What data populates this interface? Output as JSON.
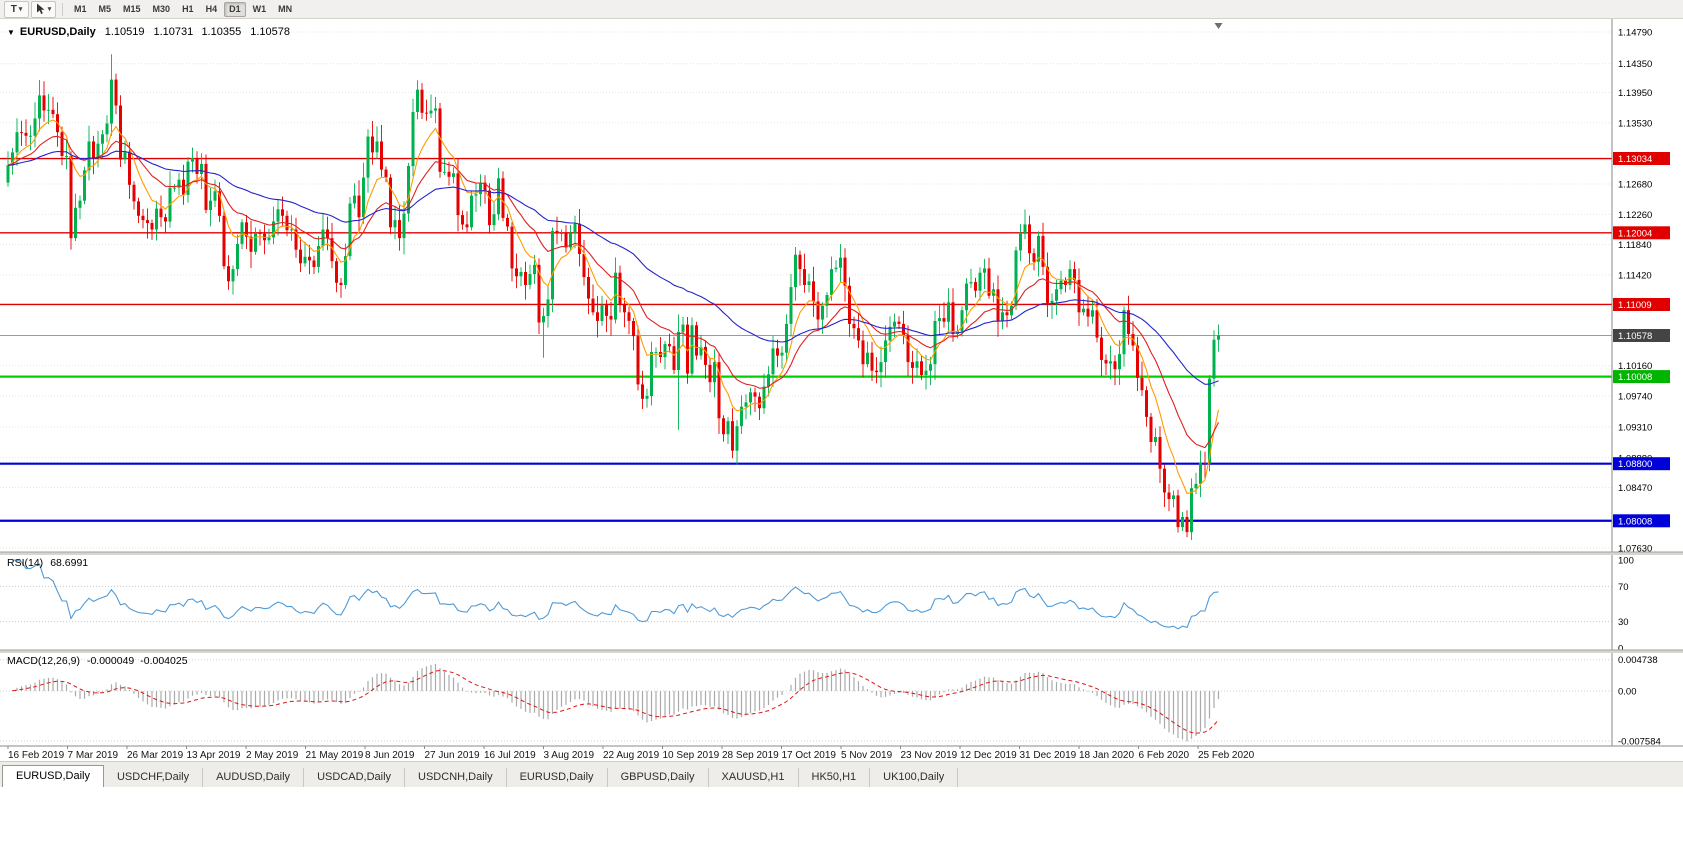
{
  "icons": {
    "collapse": "▼",
    "dropdown": "▾"
  },
  "toolbar": {
    "tool_t": "T",
    "timeframes": [
      "M1",
      "M5",
      "M15",
      "M30",
      "H1",
      "H4",
      "D1",
      "W1",
      "MN"
    ],
    "active_timeframe": "D1"
  },
  "chart": {
    "symbol": "EURUSD,Daily",
    "ohlc": {
      "open": "1.10519",
      "high": "1.10731",
      "low": "1.10355",
      "close": "1.10578"
    },
    "price_axis": {
      "ticks": [
        "1.14790",
        "1.14350",
        "1.13950",
        "1.13530",
        "1.12680",
        "1.12260",
        "1.11840",
        "1.11420",
        "1.10160",
        "1.09740",
        "1.09310",
        "1.08880",
        "1.08470",
        "1.07630"
      ]
    },
    "levels": [
      {
        "label": "1.13034",
        "price": 1.13034,
        "color": "#e00000",
        "width": 1.4
      },
      {
        "label": "1.12004",
        "price": 1.12004,
        "color": "#e00000",
        "width": 1.4
      },
      {
        "label": "1.11009",
        "price": 1.11009,
        "color": "#e00000",
        "width": 1.4
      },
      {
        "label": "1.10578",
        "price": 1.10578,
        "color": "#9a9a9a",
        "width": 1,
        "badge": "#444444"
      },
      {
        "label": "1.10008",
        "price": 1.10008,
        "color": "#00d000",
        "width": 2.2,
        "badge": "#00b400"
      },
      {
        "label": "1.08800",
        "price": 1.088,
        "color": "#0000d8",
        "width": 2.2
      },
      {
        "label": "1.08008",
        "price": 1.08008,
        "color": "#0000d8",
        "width": 2.2
      }
    ],
    "dates": [
      "16 Feb 2019",
      "7 Mar 2019",
      "26 Mar 2019",
      "13 Apr 2019",
      "2 May 2019",
      "21 May 2019",
      "8 Jun 2019",
      "27 Jun 2019",
      "16 Jul 2019",
      "3 Aug 2019",
      "22 Aug 2019",
      "10 Sep 2019",
      "28 Sep 2019",
      "17 Oct 2019",
      "5 Nov 2019",
      "23 Nov 2019",
      "12 Dec 2019",
      "31 Dec 2019",
      "18 Jan 2020",
      "6 Feb 2020",
      "25 Feb 2020"
    ]
  },
  "rsi": {
    "name": "RSI(14)",
    "value": "68.6991",
    "ticks": [
      {
        "label": "100",
        "value": 100
      },
      {
        "label": "70",
        "value": 70
      },
      {
        "label": "30",
        "value": 30
      },
      {
        "label": "0",
        "value": 0
      }
    ],
    "guide_levels": [
      70,
      30
    ]
  },
  "macd": {
    "name": "MACD(12,26,9)",
    "value_macd": "-0.000049",
    "value_signal": "-0.004025",
    "ticks": [
      {
        "label": "0.004738",
        "value": 0.004738
      },
      {
        "label": "0.00",
        "value": 0
      },
      {
        "label": "-0.007584",
        "value": -0.007584
      }
    ]
  },
  "tabs": [
    "EURUSD,Daily",
    "USDCHF,Daily",
    "AUDUSD,Daily",
    "USDCAD,Daily",
    "USDCNH,Daily",
    "EURUSD,Daily",
    "GBPUSD,Daily",
    "XAUUSD,H1",
    "HK50,H1",
    "UK100,Daily"
  ],
  "active_tab_index": 0,
  "colors": {
    "up": "#00b14f",
    "down": "#e60000",
    "rsi": "#4f9bd8",
    "macd_hist": "#aaaaaa",
    "macd_signal": "#e01414"
  },
  "chart_data": {
    "type": "candlestick",
    "symbol": "EURUSD",
    "timeframe": "Daily",
    "first_open": 1.127,
    "closes": [
      1.1294,
      1.1312,
      1.134,
      1.1339,
      1.1335,
      1.1335,
      1.1359,
      1.1391,
      1.137,
      1.1371,
      1.1365,
      1.134,
      1.1307,
      1.1307,
      1.1193,
      1.1235,
      1.1245,
      1.1287,
      1.1327,
      1.1304,
      1.1324,
      1.1337,
      1.1352,
      1.1413,
      1.1377,
      1.1302,
      1.1313,
      1.1267,
      1.1244,
      1.1224,
      1.1218,
      1.1214,
      1.1205,
      1.1234,
      1.1222,
      1.1216,
      1.1263,
      1.1263,
      1.1274,
      1.1253,
      1.1299,
      1.1304,
      1.1282,
      1.1296,
      1.1232,
      1.1245,
      1.1258,
      1.1224,
      1.1154,
      1.1133,
      1.115,
      1.1185,
      1.1215,
      1.1195,
      1.1174,
      1.12,
      1.1199,
      1.119,
      1.1194,
      1.1216,
      1.1233,
      1.1224,
      1.1204,
      1.1205,
      1.1177,
      1.1158,
      1.1167,
      1.1162,
      1.1153,
      1.1182,
      1.1205,
      1.1193,
      1.1161,
      1.1131,
      1.1128,
      1.1168,
      1.1241,
      1.1252,
      1.1222,
      1.1277,
      1.1334,
      1.1312,
      1.1327,
      1.1288,
      1.1277,
      1.1208,
      1.1218,
      1.1193,
      1.1227,
      1.1293,
      1.1368,
      1.1399,
      1.1367,
      1.1366,
      1.137,
      1.1373,
      1.1285,
      1.1285,
      1.1278,
      1.1283,
      1.1225,
      1.1212,
      1.1208,
      1.1252,
      1.1254,
      1.127,
      1.1259,
      1.1211,
      1.1226,
      1.1276,
      1.1221,
      1.1209,
      1.1151,
      1.114,
      1.1146,
      1.1128,
      1.1143,
      1.1156,
      1.1076,
      1.1085,
      1.1108,
      1.1203,
      1.12,
      1.12,
      1.118,
      1.12,
      1.1213,
      1.1171,
      1.1139,
      1.1109,
      1.109,
      1.1078,
      1.11,
      1.1085,
      1.108,
      1.1145,
      1.1101,
      1.109,
      1.1078,
      1.1057,
      1.099,
      1.097,
      1.0974,
      1.1035,
      1.1035,
      1.1028,
      1.1046,
      1.1043,
      1.101,
      1.1063,
      1.1073,
      1.1005,
      1.1072,
      1.103,
      1.1042,
      1.1017,
      1.0993,
      1.1021,
      1.0943,
      1.0921,
      1.0939,
      1.0898,
      1.0932,
      1.0959,
      1.0965,
      1.0979,
      1.0973,
      1.0957,
      1.0987,
      1.1004,
      1.104,
      1.103,
      1.1034,
      1.1074,
      1.1125,
      1.117,
      1.115,
      1.1128,
      1.1133,
      1.1105,
      1.108,
      1.1099,
      1.1114,
      1.115,
      1.1152,
      1.1166,
      1.1127,
      1.1074,
      1.1068,
      1.1051,
      1.1018,
      1.1034,
      1.1009,
      1.1007,
      1.1021,
      1.1051,
      1.107,
      1.1077,
      1.1074,
      1.1058,
      1.1021,
      1.1013,
      1.1022,
      1.1003,
      1.1009,
      1.1018,
      1.1078,
      1.1082,
      1.1077,
      1.1104,
      1.106,
      1.1064,
      1.1093,
      1.113,
      1.1132,
      1.112,
      1.1145,
      1.1151,
      1.1113,
      1.1122,
      1.1078,
      1.109,
      1.1086,
      1.1099,
      1.1176,
      1.1199,
      1.1212,
      1.1172,
      1.116,
      1.1196,
      1.1153,
      1.1103,
      1.1106,
      1.1122,
      1.1134,
      1.1128,
      1.115,
      1.1135,
      1.109,
      1.1095,
      1.1084,
      1.1093,
      1.1055,
      1.1024,
      1.1019,
      1.1022,
      1.1011,
      1.1032,
      1.1093,
      1.106,
      1.1044,
      1.0999,
      1.0982,
      1.0945,
      1.091,
      1.0917,
      1.0873,
      1.084,
      1.0831,
      1.0836,
      1.0792,
      1.0806,
      1.0785,
      1.0846,
      1.0852,
      1.0881,
      1.088,
      1.0998,
      1.1052,
      1.10578
    ],
    "wick_overrides": {
      "14": [
        null,
        1.1177
      ],
      "23": [
        1.1448,
        null
      ],
      "91": [
        1.1412,
        null
      ],
      "118": [
        null,
        1.106
      ],
      "119": [
        null,
        1.1027
      ],
      "149": [
        1.1087,
        1.0927
      ],
      "162": [
        null,
        1.0879
      ],
      "262": [
        null,
        1.0778
      ],
      "269": [
        1.10731,
        1.10355
      ]
    },
    "moving_averages": [
      {
        "period": 8,
        "color": "#ff9c00"
      },
      {
        "period": 20,
        "color": "#e02020"
      },
      {
        "period": 55,
        "color": "#2424cc"
      }
    ]
  }
}
